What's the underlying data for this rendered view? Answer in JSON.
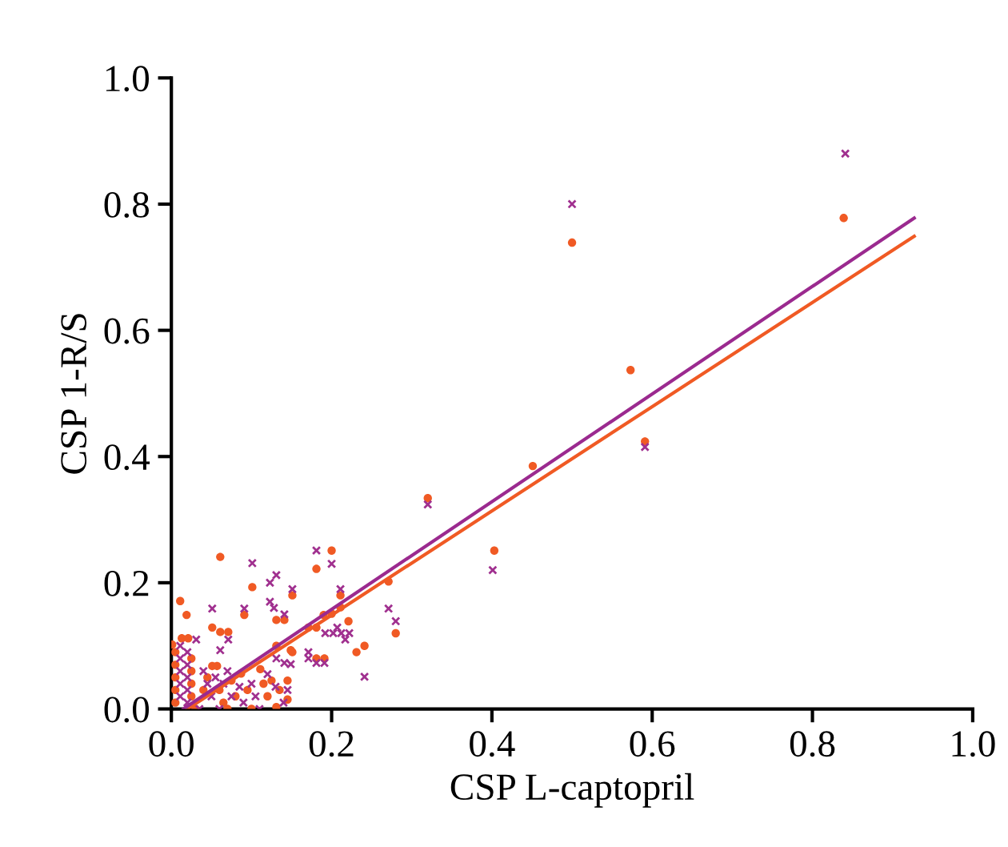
{
  "chart_data": {
    "type": "scatter",
    "xlabel": "CSP L-captopril",
    "ylabel": "CSP 1-R/S",
    "xlim": [
      0,
      1.0
    ],
    "ylim": [
      0,
      1.0
    ],
    "xticks": [
      {
        "value": 0,
        "label": "0.0"
      },
      0.2,
      0.4,
      0.6,
      0.8,
      {
        "value": 1,
        "label": "1.0"
      }
    ],
    "yticks": [
      {
        "value": 0,
        "label": "0.0"
      },
      0.2,
      0.4,
      0.6,
      0.8,
      {
        "value": 1,
        "label": "1.0"
      }
    ],
    "grid": false,
    "legend": false,
    "series": [
      {
        "marker": "circle",
        "color": "#f05a24",
        "x": [
          0.839,
          0.5,
          0.573,
          0.591,
          0.451,
          0.32,
          0.403,
          0.271,
          0.28,
          0.2,
          0.181,
          0.211,
          0.211,
          0.19,
          0.2,
          0.171,
          0.181,
          0.221,
          0.241,
          0.231,
          0.181,
          0.191,
          0.151,
          0.151,
          0.061,
          0.011,
          0.019,
          0.101,
          0.091,
          0.131,
          0.141,
          0.051,
          0.061,
          0.071,
          0.131,
          0.149,
          0.001,
          0.013,
          0.021,
          0.005,
          0.005,
          0.005,
          0.005,
          0.005,
          0.025,
          0.025,
          0.025,
          0.025,
          0.03,
          0.045,
          0.051,
          0.057,
          0.06,
          0.065,
          0.075,
          0.08,
          0.087,
          0.095,
          0.1,
          0.111,
          0.115,
          0.12,
          0.125,
          0.131,
          0.135,
          0.145,
          0.145,
          0.07,
          0.04
        ],
        "values": [
          0.778,
          0.739,
          0.537,
          0.424,
          0.385,
          0.334,
          0.251,
          0.202,
          0.12,
          0.251,
          0.222,
          0.18,
          0.161,
          0.149,
          0.151,
          0.129,
          0.129,
          0.139,
          0.1,
          0.09,
          0.08,
          0.08,
          0.18,
          0.09,
          0.241,
          0.171,
          0.149,
          0.193,
          0.149,
          0.141,
          0.141,
          0.129,
          0.122,
          0.122,
          0.1,
          0.093,
          0.102,
          0.112,
          0.112,
          0.09,
          0.07,
          0.05,
          0.03,
          0.01,
          0.08,
          0.06,
          0.04,
          0.02,
          0.0,
          0.05,
          0.068,
          0.068,
          0.03,
          0.01,
          0.045,
          0.02,
          0.056,
          0.03,
          0.0,
          0.063,
          0.04,
          0.02,
          0.045,
          0.003,
          0.03,
          0.045,
          0.015,
          0.0,
          0.03
        ]
      },
      {
        "marker": "cross",
        "color": "#a0308f",
        "x": [
          0.841,
          0.5,
          0.591,
          0.32,
          0.401,
          0.271,
          0.28,
          0.181,
          0.2,
          0.211,
          0.192,
          0.202,
          0.207,
          0.212,
          0.217,
          0.222,
          0.171,
          0.181,
          0.191,
          0.241,
          0.151,
          0.051,
          0.101,
          0.123,
          0.131,
          0.123,
          0.128,
          0.091,
          0.141,
          0.071,
          0.131,
          0.149,
          0.171,
          0.031,
          0.061,
          0.141,
          0.011,
          0.011,
          0.011,
          0.011,
          0.011,
          0.02,
          0.02,
          0.02,
          0.02,
          0.02,
          0.04,
          0.045,
          0.05,
          0.055,
          0.06,
          0.065,
          0.07,
          0.075,
          0.085,
          0.09,
          0.1,
          0.105,
          0.11,
          0.12,
          0.13,
          0.14,
          0.145,
          0.035
        ],
        "values": [
          0.88,
          0.8,
          0.415,
          0.324,
          0.22,
          0.159,
          0.139,
          0.251,
          0.23,
          0.19,
          0.12,
          0.12,
          0.129,
          0.12,
          0.11,
          0.12,
          0.09,
          0.073,
          0.073,
          0.051,
          0.19,
          0.159,
          0.231,
          0.2,
          0.212,
          0.17,
          0.16,
          0.159,
          0.15,
          0.11,
          0.08,
          0.071,
          0.08,
          0.11,
          0.093,
          0.073,
          0.1,
          0.08,
          0.06,
          0.04,
          0.02,
          0.09,
          0.07,
          0.05,
          0.03,
          0.01,
          0.06,
          0.04,
          0.02,
          0.05,
          0.0,
          0.04,
          0.06,
          0.02,
          0.035,
          0.01,
          0.04,
          0.02,
          0.0,
          0.055,
          0.035,
          0.01,
          0.03,
          0.0
        ]
      },
      {
        "type": "line",
        "marker": "none",
        "line_style": "solid",
        "color": "#f05a24",
        "x": [
          0.02,
          0.927
        ],
        "values": [
          0.0,
          0.749
        ]
      },
      {
        "type": "line",
        "marker": "none",
        "line_style": "solid",
        "color": "#9b2a8f",
        "x": [
          0.015,
          0.927
        ],
        "values": [
          0.0,
          0.778
        ]
      }
    ]
  }
}
